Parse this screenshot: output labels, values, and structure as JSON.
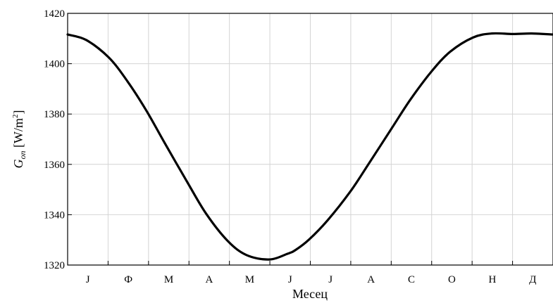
{
  "chart_data": {
    "type": "line",
    "xlabel": "Месец",
    "ylabel": {
      "base": "G",
      "subscript": "on",
      "unit_prefix": " [W/m",
      "unit_superscript": "2",
      "unit_suffix": "]"
    },
    "month_labels": [
      "J",
      "Ф",
      "M",
      "A",
      "M",
      "J",
      "J",
      "A",
      "C",
      "O",
      "Н",
      "Д"
    ],
    "xlim": [
      1,
      365
    ],
    "ylim": [
      1320,
      1420
    ],
    "yticks": [
      1320,
      1340,
      1360,
      1380,
      1400,
      1420
    ],
    "grid": true,
    "series": [
      {
        "x": [
          1,
          15,
          32,
          46,
          60,
          74,
          91,
          105,
          121,
          135,
          152,
          166,
          172,
          182,
          196,
          213,
          227,
          244,
          258,
          274,
          288,
          305,
          319,
          335,
          349,
          365
        ],
        "y": [
          1411.6,
          1409.4,
          1402.4,
          1392.9,
          1381.4,
          1368.3,
          1352.7,
          1340.3,
          1329.6,
          1324.0,
          1322.2,
          1324.5,
          1326.0,
          1330.1,
          1337.8,
          1349.2,
          1360.4,
          1374.3,
          1385.7,
          1397.0,
          1404.8,
          1410.4,
          1412.0,
          1411.8,
          1412.0,
          1411.6
        ]
      }
    ]
  }
}
